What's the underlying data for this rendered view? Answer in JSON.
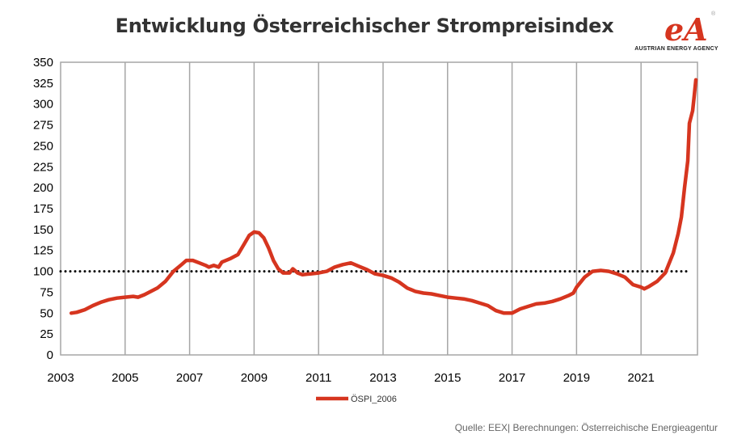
{
  "chart_data": {
    "type": "line",
    "title": "Entwicklung Österreichischer Strompreisindex",
    "xlabel": "",
    "ylabel": "",
    "xlim": [
      2003,
      2022.75
    ],
    "ylim": [
      0,
      350
    ],
    "x_ticks": [
      "2003",
      "2005",
      "2007",
      "2009",
      "2011",
      "2013",
      "2015",
      "2017",
      "2019",
      "2021"
    ],
    "y_ticks": [
      "0",
      "25",
      "50",
      "75",
      "100",
      "125",
      "150",
      "175",
      "200",
      "225",
      "250",
      "275",
      "300",
      "325",
      "350"
    ],
    "grid": "vertical",
    "legend_position": "bottom-center",
    "reference_line": {
      "value": 100,
      "style": "dotted",
      "color": "#000000"
    },
    "series": [
      {
        "name": "ÖSPI_2006",
        "color": "#d6351f",
        "points": [
          [
            2003.33,
            50
          ],
          [
            2003.5,
            51
          ],
          [
            2003.75,
            54
          ],
          [
            2004.0,
            59
          ],
          [
            2004.25,
            63
          ],
          [
            2004.5,
            66
          ],
          [
            2004.75,
            68
          ],
          [
            2005.0,
            69
          ],
          [
            2005.25,
            70
          ],
          [
            2005.4,
            69
          ],
          [
            2005.6,
            72
          ],
          [
            2005.8,
            76
          ],
          [
            2006.0,
            80
          ],
          [
            2006.25,
            88
          ],
          [
            2006.5,
            100
          ],
          [
            2006.75,
            108
          ],
          [
            2006.9,
            113
          ],
          [
            2007.1,
            113
          ],
          [
            2007.3,
            110
          ],
          [
            2007.5,
            107
          ],
          [
            2007.6,
            105
          ],
          [
            2007.75,
            107
          ],
          [
            2007.9,
            105
          ],
          [
            2008.0,
            111
          ],
          [
            2008.25,
            115
          ],
          [
            2008.5,
            120
          ],
          [
            2008.7,
            133
          ],
          [
            2008.85,
            143
          ],
          [
            2009.0,
            147
          ],
          [
            2009.15,
            146
          ],
          [
            2009.3,
            140
          ],
          [
            2009.45,
            128
          ],
          [
            2009.6,
            113
          ],
          [
            2009.75,
            103
          ],
          [
            2009.9,
            98
          ],
          [
            2010.1,
            98
          ],
          [
            2010.2,
            103
          ],
          [
            2010.35,
            98
          ],
          [
            2010.5,
            96
          ],
          [
            2010.75,
            97
          ],
          [
            2011.0,
            98
          ],
          [
            2011.25,
            100
          ],
          [
            2011.5,
            105
          ],
          [
            2011.75,
            108
          ],
          [
            2012.0,
            110
          ],
          [
            2012.25,
            106
          ],
          [
            2012.5,
            102
          ],
          [
            2012.75,
            97
          ],
          [
            2013.0,
            95
          ],
          [
            2013.25,
            92
          ],
          [
            2013.5,
            87
          ],
          [
            2013.75,
            80
          ],
          [
            2014.0,
            76
          ],
          [
            2014.25,
            74
          ],
          [
            2014.5,
            73
          ],
          [
            2014.75,
            71
          ],
          [
            2015.0,
            69
          ],
          [
            2015.25,
            68
          ],
          [
            2015.5,
            67
          ],
          [
            2015.75,
            65
          ],
          [
            2016.0,
            62
          ],
          [
            2016.25,
            59
          ],
          [
            2016.5,
            53
          ],
          [
            2016.75,
            50
          ],
          [
            2017.0,
            50
          ],
          [
            2017.25,
            55
          ],
          [
            2017.5,
            58
          ],
          [
            2017.75,
            61
          ],
          [
            2018.0,
            62
          ],
          [
            2018.25,
            64
          ],
          [
            2018.5,
            67
          ],
          [
            2018.75,
            71
          ],
          [
            2018.9,
            74
          ],
          [
            2019.0,
            81
          ],
          [
            2019.25,
            93
          ],
          [
            2019.5,
            100
          ],
          [
            2019.75,
            101
          ],
          [
            2020.0,
            100
          ],
          [
            2020.25,
            97
          ],
          [
            2020.5,
            93
          ],
          [
            2020.75,
            84
          ],
          [
            2021.0,
            81
          ],
          [
            2021.1,
            79
          ],
          [
            2021.25,
            82
          ],
          [
            2021.5,
            88
          ],
          [
            2021.75,
            98
          ],
          [
            2022.0,
            122
          ],
          [
            2022.15,
            145
          ],
          [
            2022.25,
            165
          ],
          [
            2022.35,
            200
          ],
          [
            2022.45,
            232
          ],
          [
            2022.5,
            277
          ],
          [
            2022.6,
            292
          ],
          [
            2022.65,
            310
          ],
          [
            2022.7,
            329
          ]
        ]
      }
    ]
  },
  "logo": {
    "mark": "eA",
    "text": "AUSTRIAN ENERGY AGENCY",
    "registered": "®"
  },
  "source_text": "Quelle: EEX| Berechnungen: Österreichische Energieagentur"
}
